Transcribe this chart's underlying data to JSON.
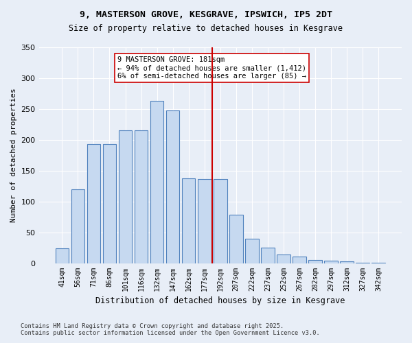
{
  "title_line1": "9, MASTERSON GROVE, KESGRAVE, IPSWICH, IP5 2DT",
  "title_line2": "Size of property relative to detached houses in Kesgrave",
  "xlabel": "Distribution of detached houses by size in Kesgrave",
  "ylabel": "Number of detached properties",
  "categories": [
    "41sqm",
    "56sqm",
    "71sqm",
    "86sqm",
    "101sqm",
    "116sqm",
    "132sqm",
    "147sqm",
    "162sqm",
    "177sqm",
    "192sqm",
    "207sqm",
    "222sqm",
    "237sqm",
    "252sqm",
    "267sqm",
    "282sqm",
    "297sqm",
    "312sqm",
    "327sqm",
    "342sqm"
  ],
  "bar_heights": [
    24,
    120,
    193,
    193,
    215,
    215,
    263,
    248,
    137,
    136,
    136,
    79,
    40,
    25,
    14,
    11,
    5,
    4,
    3,
    1,
    1
  ],
  "bar_color": "#c6d9f0",
  "bar_edge_color": "#4f81bd",
  "vline_x": 10.6,
  "vline_color": "#cc0000",
  "annotation_text": "9 MASTERSON GROVE: 181sqm\n← 94% of detached houses are smaller (1,412)\n6% of semi-detached houses are larger (85) →",
  "annotation_box_color": "#ffffff",
  "annotation_box_edge": "#cc0000",
  "ylim": [
    0,
    350
  ],
  "yticks": [
    0,
    50,
    100,
    150,
    200,
    250,
    300,
    350
  ],
  "background_color": "#e8eef7",
  "footer_line1": "Contains HM Land Registry data © Crown copyright and database right 2025.",
  "footer_line2": "Contains public sector information licensed under the Open Government Licence v3.0."
}
